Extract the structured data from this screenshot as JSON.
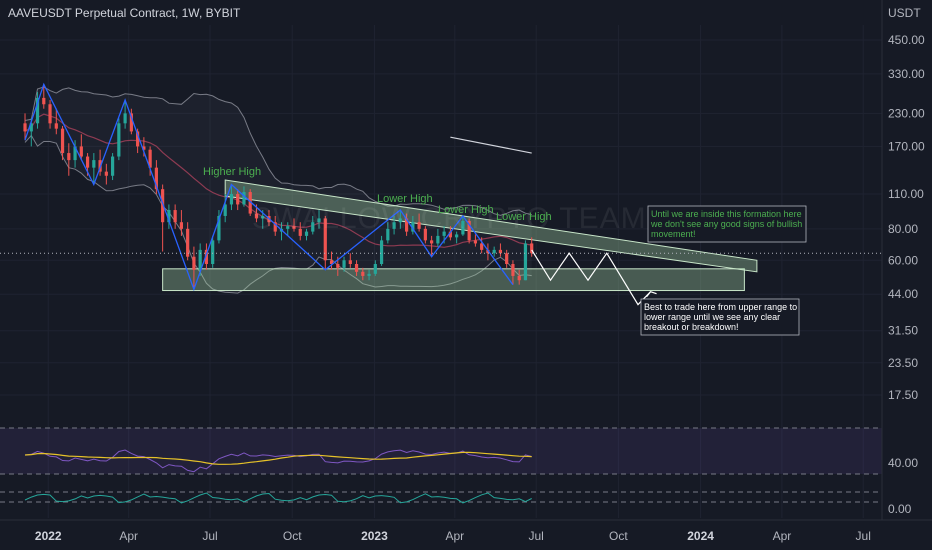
{
  "title": "AAVEUSDT Perpetual Contract, 1W, BYBIT",
  "currency": "USDT",
  "watermark": "SWALLOW CRYPTO TEAM",
  "price_ticks": [
    "450.00",
    "330.00",
    "230.00",
    "170.00",
    "110.00",
    "80.00",
    "60.00",
    "44.00",
    "31.50",
    "23.50",
    "17.50"
  ],
  "osc_ticks": {
    "rsi": "40.00",
    "lower": "0.00"
  },
  "time_ticks": [
    {
      "label": "2022",
      "bold": true
    },
    {
      "label": "Apr",
      "bold": false
    },
    {
      "label": "Jul",
      "bold": false
    },
    {
      "label": "Oct",
      "bold": false
    },
    {
      "label": "2023",
      "bold": true
    },
    {
      "label": "Apr",
      "bold": false
    },
    {
      "label": "Jul",
      "bold": false
    },
    {
      "label": "Oct",
      "bold": false
    },
    {
      "label": "2024",
      "bold": true
    },
    {
      "label": "Apr",
      "bold": false
    },
    {
      "label": "Jul",
      "bold": false
    }
  ],
  "annotations": {
    "higher_high": "Higher High",
    "lower_high_1": "Lower High",
    "lower_high_2": "Lower High",
    "lower_high_3": "Lower High",
    "note_top_lines": [
      "Until we are inside this formation here",
      "we don't see any good signs of bullish",
      "movement!"
    ],
    "note_bottom_lines": [
      "Best to trade here from upper range to",
      "lower range until we see any clear",
      "breakout or breakdown!"
    ]
  },
  "colors": {
    "background": "#161a25",
    "up": "#26a69a",
    "down": "#ef5350",
    "zone_fill": "#a5d6a7",
    "rsi_line": "#7e57c2",
    "rsi_ma": "#e6c229",
    "band": "#787b86"
  },
  "chart_data": {
    "type": "candlestick",
    "symbol": "AAVEUSDT",
    "interval": "1W",
    "exchange": "BYBIT",
    "scale": "log",
    "ylim": [
      15,
      560
    ],
    "xlim": [
      "2021-11-08",
      "2024-07-22"
    ],
    "series": [
      {
        "name": "AAVEUSDT",
        "values": [
          [
            "2021-12-06",
            210,
            230,
            180,
            195
          ],
          [
            "2021-12-13",
            195,
            220,
            170,
            210
          ],
          [
            "2021-12-20",
            210,
            280,
            200,
            265
          ],
          [
            "2021-12-27",
            265,
            300,
            240,
            250
          ],
          [
            "2022-01-03",
            250,
            260,
            200,
            210
          ],
          [
            "2022-01-10",
            210,
            240,
            190,
            200
          ],
          [
            "2022-01-17",
            200,
            205,
            150,
            160
          ],
          [
            "2022-01-24",
            160,
            175,
            130,
            150
          ],
          [
            "2022-01-31",
            150,
            180,
            140,
            170
          ],
          [
            "2022-02-07",
            170,
            190,
            150,
            155
          ],
          [
            "2022-02-14",
            155,
            160,
            130,
            140
          ],
          [
            "2022-02-21",
            140,
            160,
            120,
            150
          ],
          [
            "2022-02-28",
            150,
            165,
            130,
            135
          ],
          [
            "2022-03-07",
            135,
            145,
            120,
            130
          ],
          [
            "2022-03-14",
            130,
            160,
            125,
            155
          ],
          [
            "2022-03-21",
            155,
            220,
            150,
            210
          ],
          [
            "2022-03-28",
            210,
            260,
            200,
            230
          ],
          [
            "2022-04-04",
            230,
            240,
            190,
            195
          ],
          [
            "2022-04-11",
            195,
            200,
            160,
            170
          ],
          [
            "2022-04-18",
            170,
            185,
            155,
            165
          ],
          [
            "2022-04-25",
            165,
            170,
            130,
            140
          ],
          [
            "2022-05-02",
            140,
            150,
            110,
            115
          ],
          [
            "2022-05-09",
            115,
            120,
            65,
            85
          ],
          [
            "2022-05-16",
            85,
            100,
            80,
            95
          ],
          [
            "2022-05-23",
            95,
            100,
            80,
            85
          ],
          [
            "2022-05-30",
            85,
            95,
            75,
            80
          ],
          [
            "2022-06-06",
            80,
            85,
            60,
            62
          ],
          [
            "2022-06-13",
            62,
            68,
            46,
            55
          ],
          [
            "2022-06-20",
            55,
            70,
            52,
            66
          ],
          [
            "2022-06-27",
            66,
            70,
            55,
            58
          ],
          [
            "2022-07-04",
            58,
            75,
            56,
            72
          ],
          [
            "2022-07-11",
            72,
            95,
            70,
            90
          ],
          [
            "2022-07-18",
            90,
            110,
            85,
            100
          ],
          [
            "2022-07-25",
            100,
            120,
            95,
            110
          ],
          [
            "2022-08-01",
            110,
            115,
            95,
            100
          ],
          [
            "2022-08-08",
            100,
            118,
            98,
            112
          ],
          [
            "2022-08-15",
            112,
            115,
            90,
            92
          ],
          [
            "2022-08-22",
            92,
            100,
            85,
            88
          ],
          [
            "2022-08-29",
            88,
            95,
            80,
            90
          ],
          [
            "2022-09-05",
            90,
            95,
            82,
            85
          ],
          [
            "2022-09-12",
            85,
            90,
            75,
            78
          ],
          [
            "2022-09-19",
            78,
            85,
            72,
            80
          ],
          [
            "2022-09-26",
            80,
            85,
            75,
            82
          ],
          [
            "2022-10-03",
            82,
            88,
            78,
            80
          ],
          [
            "2022-10-10",
            80,
            85,
            72,
            75
          ],
          [
            "2022-10-17",
            75,
            80,
            72,
            78
          ],
          [
            "2022-10-24",
            78,
            90,
            76,
            85
          ],
          [
            "2022-10-31",
            85,
            95,
            80,
            88
          ],
          [
            "2022-11-07",
            88,
            90,
            55,
            60
          ],
          [
            "2022-11-14",
            60,
            65,
            55,
            58
          ],
          [
            "2022-11-21",
            58,
            62,
            52,
            56
          ],
          [
            "2022-11-28",
            56,
            62,
            54,
            60
          ],
          [
            "2022-12-05",
            60,
            64,
            56,
            58
          ],
          [
            "2022-12-12",
            58,
            60,
            52,
            54
          ],
          [
            "2022-12-19",
            54,
            56,
            50,
            52
          ],
          [
            "2022-12-26",
            52,
            55,
            50,
            53
          ],
          [
            "2023-01-02",
            53,
            60,
            52,
            58
          ],
          [
            "2023-01-09",
            58,
            75,
            57,
            72
          ],
          [
            "2023-01-16",
            72,
            85,
            70,
            80
          ],
          [
            "2023-01-23",
            80,
            90,
            76,
            85
          ],
          [
            "2023-01-30",
            85,
            95,
            80,
            88
          ],
          [
            "2023-02-06",
            88,
            92,
            75,
            78
          ],
          [
            "2023-02-13",
            78,
            90,
            76,
            85
          ],
          [
            "2023-02-20",
            85,
            92,
            78,
            80
          ],
          [
            "2023-02-27",
            80,
            82,
            70,
            72
          ],
          [
            "2023-03-06",
            72,
            75,
            62,
            70
          ],
          [
            "2023-03-13",
            70,
            80,
            68,
            75
          ],
          [
            "2023-03-20",
            75,
            82,
            70,
            78
          ],
          [
            "2023-03-27",
            78,
            82,
            72,
            74
          ],
          [
            "2023-04-03",
            74,
            78,
            70,
            76
          ],
          [
            "2023-04-10",
            76,
            90,
            75,
            86
          ],
          [
            "2023-04-17",
            86,
            88,
            70,
            72
          ],
          [
            "2023-04-24",
            72,
            76,
            68,
            70
          ],
          [
            "2023-05-01",
            70,
            74,
            64,
            66
          ],
          [
            "2023-05-08",
            66,
            70,
            60,
            64
          ],
          [
            "2023-05-15",
            64,
            68,
            62,
            66
          ],
          [
            "2023-05-22",
            66,
            70,
            62,
            64
          ],
          [
            "2023-05-29",
            64,
            66,
            56,
            58
          ],
          [
            "2023-06-05",
            58,
            60,
            48,
            52
          ],
          [
            "2023-06-12",
            52,
            55,
            48,
            50
          ],
          [
            "2023-06-19",
            50,
            72,
            50,
            70
          ],
          [
            "2023-06-26",
            70,
            74,
            62,
            64
          ]
        ]
      }
    ],
    "overlays": [
      "Bollinger Bands",
      "Moving Average",
      "ZigZag"
    ],
    "indicators": [
      "RSI",
      "Oscillator"
    ]
  }
}
